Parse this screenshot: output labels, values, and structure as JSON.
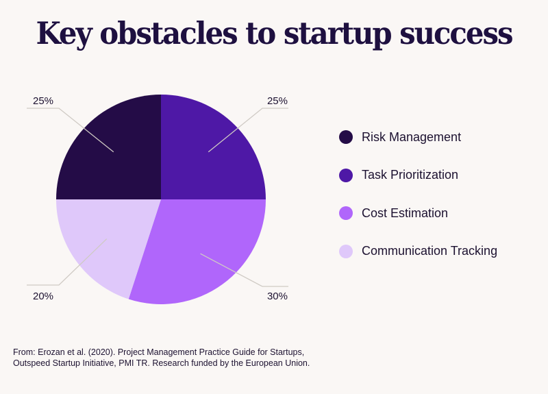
{
  "title": "Key obstacles to startup success",
  "chart_data": {
    "type": "pie",
    "title": "Key obstacles to startup success",
    "start_angle_deg": 0,
    "direction": "clockwise",
    "slices": [
      {
        "label": "Task Prioritization",
        "value": 25,
        "display": "25%",
        "color": "#4e18a6"
      },
      {
        "label": "Cost Estimation",
        "value": 30,
        "display": "30%",
        "color": "#b066fb"
      },
      {
        "label": "Communication Tracking",
        "value": 20,
        "display": "20%",
        "color": "#dfc8fa"
      },
      {
        "label": "Risk Management",
        "value": 25,
        "display": "25%",
        "color": "#240c47"
      }
    ],
    "legend": {
      "position": "right",
      "items": [
        {
          "label": "Risk Management",
          "color": "#240c47"
        },
        {
          "label": "Task Prioritization",
          "color": "#4e18a6"
        },
        {
          "label": "Cost Estimation",
          "color": "#b066fb"
        },
        {
          "label": "Communication Tracking",
          "color": "#dfc8fa"
        }
      ]
    },
    "leader_line_color": "#cfcac4"
  },
  "source": {
    "line1": "From: Erozan et al. (2020). Project Management Practice Guide for Startups,",
    "line2": "Outspeed Startup Initiative, PMI TR. Research funded by the European Union."
  }
}
